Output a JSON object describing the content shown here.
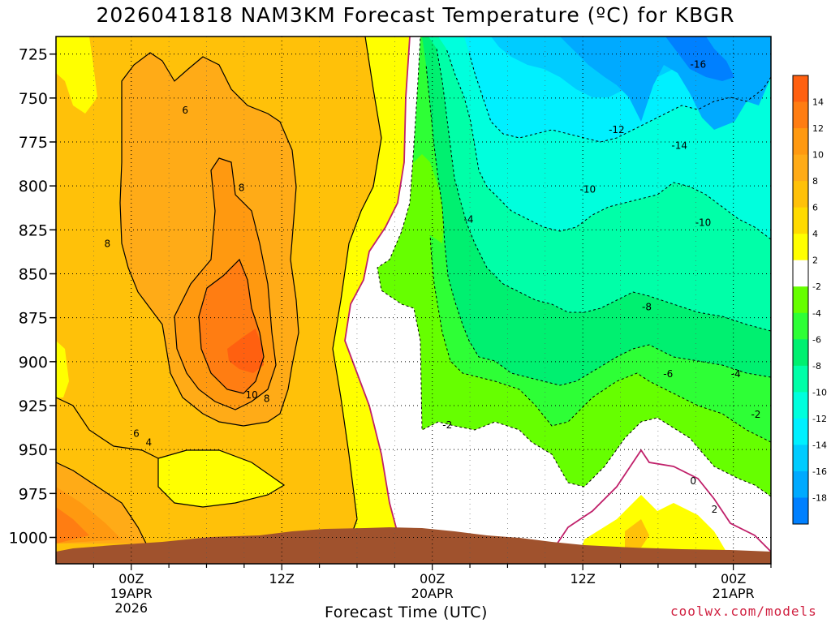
{
  "title": "2026041818 NAM3KM Forecast Temperature (ºC) for KBGR",
  "credit": "coolwx.com/models",
  "chart_data": {
    "type": "heatmap",
    "title": "2026041818 NAM3KM Forecast Temperature (ºC) for KBGR",
    "xlabel": "Forecast Time (UTC)",
    "ylabel": "",
    "ylim": [
      1015,
      715
    ],
    "xlim_hours": [
      -6,
      51
    ],
    "x_ticks": [
      {
        "hours": 0,
        "label": "00Z",
        "date": "19APR",
        "year": "2026"
      },
      {
        "hours": 12,
        "label": "12Z"
      },
      {
        "hours": 24,
        "label": "00Z",
        "date": "20APR"
      },
      {
        "hours": 36,
        "label": "12Z"
      },
      {
        "hours": 48,
        "label": "00Z",
        "date": "21APR"
      }
    ],
    "y_ticks": [
      725,
      750,
      775,
      800,
      825,
      850,
      875,
      900,
      925,
      950,
      975,
      1000
    ],
    "grid": true,
    "contour_labels": [
      {
        "text": "6",
        "hours": 4.3,
        "p": 757
      },
      {
        "text": "8",
        "hours": 8.8,
        "p": 801
      },
      {
        "text": "8",
        "hours": -1.9,
        "p": 833
      },
      {
        "text": "10",
        "hours": 9.6,
        "p": 919
      },
      {
        "text": "8",
        "hours": 10.8,
        "p": 921
      },
      {
        "text": "6",
        "hours": 0.4,
        "p": 941
      },
      {
        "text": "4",
        "hours": 1.4,
        "p": 946
      },
      {
        "text": "-16",
        "hours": 45.2,
        "p": 731
      },
      {
        "text": "-12",
        "hours": 38.7,
        "p": 768
      },
      {
        "text": "-14",
        "hours": 43.7,
        "p": 777
      },
      {
        "text": "-10",
        "hours": 36.4,
        "p": 802
      },
      {
        "text": "-4",
        "hours": 26.9,
        "p": 819
      },
      {
        "text": "-10",
        "hours": 45.6,
        "p": 821
      },
      {
        "text": "-8",
        "hours": 41.1,
        "p": 869
      },
      {
        "text": "-6",
        "hours": 42.8,
        "p": 907
      },
      {
        "text": "-4",
        "hours": 48.2,
        "p": 907
      },
      {
        "text": "-2",
        "hours": 25.2,
        "p": 936
      },
      {
        "text": "-2",
        "hours": 49.8,
        "p": 930
      },
      {
        "text": "0",
        "hours": 44.8,
        "p": 968
      },
      {
        "text": "2",
        "hours": 46.5,
        "p": 984
      }
    ],
    "colorbar": {
      "ticks": [
        14,
        12,
        10,
        8,
        6,
        4,
        2,
        -2,
        -4,
        -6,
        -8,
        -10,
        -12,
        -14,
        -16,
        -18
      ],
      "colors": [
        "#ff6010",
        "#ff7d12",
        "#ff9910",
        "#ffab17",
        "#ffc109",
        "#ffdb00",
        "#ffff00",
        "#ffffff",
        "#66ff00",
        "#2eff36",
        "#00f070",
        "#00ffa8",
        "#00ffdd",
        "#00f0ff",
        "#00ccff",
        "#00aaff",
        "#0080ff"
      ]
    }
  }
}
